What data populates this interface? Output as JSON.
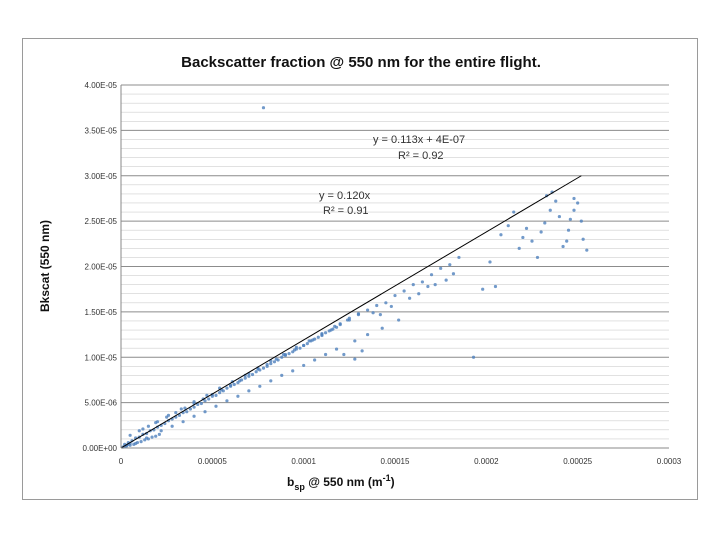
{
  "chart_data": {
    "type": "scatter",
    "title": "Backscatter fraction @ 550 nm for the entire flight.",
    "xlabel": {
      "prefix": "b",
      "sub": "sp",
      "middle": " @ 550 nm (m",
      "sup": "-1",
      "suffix": ")"
    },
    "ylabel": "Bkscat (550 nm)",
    "xlim": [
      0,
      0.0003
    ],
    "ylim": [
      0,
      4e-05
    ],
    "x_ticks": [
      0,
      5e-05,
      0.0001,
      0.00015,
      0.0002,
      0.00025,
      0.0003
    ],
    "x_tick_labels": [
      "0",
      "0.00005",
      "0.0001",
      "0.00015",
      "0.0002",
      "0.00025",
      "0.0003"
    ],
    "y_ticks": [
      0,
      5e-06,
      1e-05,
      1.5e-05,
      2e-05,
      2.5e-05,
      3e-05,
      3.5e-05,
      4e-05
    ],
    "y_tick_labels": [
      "0.00E+00",
      "5.00E-06",
      "1.00E-05",
      "1.50E-05",
      "2.00E-05",
      "2.50E-05",
      "3.00E-05",
      "3.50E-05",
      "4.00E-05"
    ],
    "grid": true,
    "legend": "none",
    "marker_color": "#4f81bd",
    "line_color": "#000000",
    "series": [
      {
        "points": [
          [
            2e-06,
            4e-07
          ],
          [
            4e-06,
            6e-07
          ],
          [
            6e-06,
            8e-07
          ],
          [
            8e-06,
            1.1e-06
          ],
          [
            1e-05,
            1.2e-06
          ],
          [
            1.2e-05,
            1.5e-06
          ],
          [
            1.4e-05,
            1.6e-06
          ],
          [
            1.6e-05,
            1.9e-06
          ],
          [
            1.8e-05,
            2e-06
          ],
          [
            2e-05,
            2.3e-06
          ],
          [
            2.2e-05,
            2.5e-06
          ],
          [
            2.4e-05,
            2.7e-06
          ],
          [
            2.6e-05,
            3e-06
          ],
          [
            2.8e-05,
            3.2e-06
          ],
          [
            3e-05,
            3.4e-06
          ],
          [
            3.2e-05,
            3.6e-06
          ],
          [
            3.4e-05,
            3.9e-06
          ],
          [
            3.6e-05,
            4e-06
          ],
          [
            3.8e-05,
            4.3e-06
          ],
          [
            4e-05,
            4.5e-06
          ],
          [
            4.2e-05,
            4.8e-06
          ],
          [
            4.4e-05,
            4.9e-06
          ],
          [
            4.6e-05,
            5.2e-06
          ],
          [
            4.8e-05,
            5.4e-06
          ],
          [
            5e-05,
            5.7e-06
          ],
          [
            5.2e-05,
            5.8e-06
          ],
          [
            5.4e-05,
            6.1e-06
          ],
          [
            5.6e-05,
            6.3e-06
          ],
          [
            5.8e-05,
            6.6e-06
          ],
          [
            6e-05,
            6.8e-06
          ],
          [
            6.2e-05,
            7e-06
          ],
          [
            6.4e-05,
            7.2e-06
          ],
          [
            6.6e-05,
            7.5e-06
          ],
          [
            6.8e-05,
            7.7e-06
          ],
          [
            7e-05,
            7.9e-06
          ],
          [
            7.2e-05,
            8.1e-06
          ],
          [
            7.4e-05,
            8.4e-06
          ],
          [
            7.6e-05,
            8.6e-06
          ],
          [
            7.8e-05,
            8.8e-06
          ],
          [
            8e-05,
            9e-06
          ],
          [
            8.2e-05,
            9.3e-06
          ],
          [
            8.4e-05,
            9.5e-06
          ],
          [
            8.6e-05,
            9.7e-06
          ],
          [
            8.8e-05,
            1e-05
          ],
          [
            9e-05,
            1.02e-05
          ],
          [
            9.2e-05,
            1.04e-05
          ],
          [
            9.4e-05,
            1.06e-05
          ],
          [
            9.6e-05,
            1.09e-05
          ],
          [
            9.8e-05,
            1.1e-05
          ],
          [
            0.0001,
            1.13e-05
          ],
          [
            0.000102,
            1.15e-05
          ],
          [
            0.000104,
            1.18e-05
          ],
          [
            0.000106,
            1.2e-05
          ],
          [
            0.000108,
            1.22e-05
          ],
          [
            0.00011,
            1.24e-05
          ],
          [
            0.000112,
            1.27e-05
          ],
          [
            0.000114,
            1.29e-05
          ],
          [
            0.000116,
            1.31e-05
          ],
          [
            0.000118,
            1.33e-05
          ],
          [
            0.00012,
            1.36e-05
          ],
          [
            0.000125,
            1.41e-05
          ],
          [
            0.00013,
            1.47e-05
          ],
          [
            0.000135,
            1.52e-05
          ],
          [
            1e-05,
            1.9e-06
          ],
          [
            1.5e-05,
            2.4e-06
          ],
          [
            2e-05,
            2.9e-06
          ],
          [
            2.5e-05,
            3.4e-06
          ],
          [
            3e-05,
            3.9e-06
          ],
          [
            3.5e-05,
            4.4e-06
          ],
          [
            4e-05,
            4.9e-06
          ],
          [
            4.5e-05,
            5.4e-06
          ],
          [
            5e-05,
            5.9e-06
          ],
          [
            5.5e-05,
            6.4e-06
          ],
          [
            6e-05,
            6.9e-06
          ],
          [
            6.5e-05,
            7.4e-06
          ],
          [
            7e-05,
            8.2e-06
          ],
          [
            7.5e-05,
            8.7e-06
          ],
          [
            8e-05,
            9.2e-06
          ],
          [
            8.5e-05,
            9.8e-06
          ],
          [
            9e-05,
            1.03e-05
          ],
          [
            9.5e-05,
            1.08e-05
          ],
          [
            0.0001,
            1.13e-05
          ],
          [
            0.000105,
            1.19e-05
          ],
          [
            0.00011,
            1.25e-05
          ],
          [
            0.000115,
            1.3e-05
          ],
          [
            0.00012,
            1.37e-05
          ],
          [
            0.000125,
            1.43e-05
          ],
          [
            0.00013,
            1.48e-05
          ],
          [
            8e-06,
            5e-07
          ],
          [
            1.4e-05,
            1.1e-06
          ],
          [
            2.2e-05,
            1.9e-06
          ],
          [
            2.8e-05,
            2.4e-06
          ],
          [
            3.4e-05,
            2.9e-06
          ],
          [
            4e-05,
            3.5e-06
          ],
          [
            4.6e-05,
            4e-06
          ],
          [
            5.2e-05,
            4.6e-06
          ],
          [
            5.8e-05,
            5.2e-06
          ],
          [
            6.4e-05,
            5.7e-06
          ],
          [
            7e-05,
            6.3e-06
          ],
          [
            7.6e-05,
            6.8e-06
          ],
          [
            8.2e-05,
            7.4e-06
          ],
          [
            8.8e-05,
            8e-06
          ],
          [
            9.4e-05,
            8.5e-06
          ],
          [
            0.0001,
            9.1e-06
          ],
          [
            0.000106,
            9.7e-06
          ],
          [
            0.000112,
            1.03e-05
          ],
          [
            0.000118,
            1.09e-05
          ],
          [
            5e-06,
            1.4e-06
          ],
          [
            1.2e-05,
            2.1e-06
          ],
          [
            1.9e-05,
            2.8e-06
          ],
          [
            2.6e-05,
            3.6e-06
          ],
          [
            3.3e-05,
            4.3e-06
          ],
          [
            4e-05,
            5.1e-06
          ],
          [
            4.7e-05,
            5.8e-06
          ],
          [
            5.4e-05,
            6.6e-06
          ],
          [
            6.1e-05,
            7.3e-06
          ],
          [
            6.8e-05,
            8e-06
          ],
          [
            7.5e-05,
            8.8e-06
          ],
          [
            8.2e-05,
            9.6e-06
          ],
          [
            8.9e-05,
            1.03e-05
          ],
          [
            9.6e-05,
            1.11e-05
          ],
          [
            0.000103,
            1.18e-05
          ],
          [
            0.00011,
            1.26e-05
          ],
          [
            0.000117,
            1.34e-05
          ],
          [
            0.000124,
            1.41e-05
          ],
          [
            3e-06,
            2e-07
          ],
          [
            5e-06,
            3e-07
          ],
          [
            7e-06,
            4e-07
          ],
          [
            9e-06,
            6e-07
          ],
          [
            1.1e-05,
            7e-07
          ],
          [
            1.3e-05,
            9e-07
          ],
          [
            1.5e-05,
            1e-06
          ],
          [
            1.7e-05,
            1.2e-06
          ],
          [
            1.9e-05,
            1.3e-06
          ],
          [
            2.1e-05,
            1.5e-06
          ],
          [
            1e-06,
            1e-07
          ],
          [
            2e-06,
            2e-07
          ],
          [
            3e-06,
            3e-07
          ],
          [
            4e-06,
            4e-07
          ],
          [
            5e-06,
            5e-07
          ],
          [
            0.00014,
            1.57e-05
          ],
          [
            0.000145,
            1.6e-05
          ],
          [
            0.00015,
            1.68e-05
          ],
          [
            0.000155,
            1.73e-05
          ],
          [
            0.00016,
            1.8e-05
          ],
          [
            0.000165,
            1.83e-05
          ],
          [
            0.00017,
            1.91e-05
          ],
          [
            0.000175,
            1.98e-05
          ],
          [
            0.00018,
            2.02e-05
          ],
          [
            0.000185,
            2.1e-05
          ],
          [
            0.000138,
            1.49e-05
          ],
          [
            0.000142,
            1.47e-05
          ],
          [
            0.000148,
            1.56e-05
          ],
          [
            0.000158,
            1.65e-05
          ],
          [
            0.000163,
            1.7e-05
          ],
          [
            0.000168,
            1.78e-05
          ],
          [
            0.000172,
            1.8e-05
          ],
          [
            0.000178,
            1.85e-05
          ],
          [
            0.000182,
            1.92e-05
          ],
          [
            0.000122,
            1.03e-05
          ],
          [
            0.000128,
            9.8e-06
          ],
          [
            0.000132,
            1.07e-05
          ],
          [
            0.000128,
            1.18e-05
          ],
          [
            0.000135,
            1.25e-05
          ],
          [
            0.000143,
            1.32e-05
          ],
          [
            0.000152,
            1.41e-05
          ],
          [
            7.8e-05,
            3.75e-05
          ],
          [
            0.000193,
            1e-05
          ],
          [
            0.000198,
            1.75e-05
          ],
          [
            0.000202,
            2.05e-05
          ],
          [
            0.000205,
            1.78e-05
          ],
          [
            0.000208,
            2.35e-05
          ],
          [
            0.000212,
            2.45e-05
          ],
          [
            0.000215,
            2.6e-05
          ],
          [
            0.000218,
            2.2e-05
          ],
          [
            0.00022,
            2.32e-05
          ],
          [
            0.000222,
            2.42e-05
          ],
          [
            0.000225,
            2.28e-05
          ],
          [
            0.000228,
            2.1e-05
          ],
          [
            0.00023,
            2.38e-05
          ],
          [
            0.000232,
            2.48e-05
          ],
          [
            0.000235,
            2.62e-05
          ],
          [
            0.000238,
            2.72e-05
          ],
          [
            0.00024,
            2.55e-05
          ],
          [
            0.000242,
            2.22e-05
          ],
          [
            0.000244,
            2.28e-05
          ],
          [
            0.000245,
            2.4e-05
          ],
          [
            0.000246,
            2.52e-05
          ],
          [
            0.000248,
            2.62e-05
          ],
          [
            0.00025,
            2.7e-05
          ],
          [
            0.000252,
            2.5e-05
          ],
          [
            0.000253,
            2.3e-05
          ],
          [
            0.000255,
            2.18e-05
          ],
          [
            0.000236,
            2.82e-05
          ],
          [
            0.000233,
            2.78e-05
          ],
          [
            0.000248,
            2.75e-05
          ]
        ]
      }
    ],
    "fit_line": {
      "x": [
        0,
        0.000252
      ],
      "y": [
        0,
        3e-05
      ]
    },
    "annotations": [
      {
        "line1": "y = 0.113x + 4E-07",
        "line2": "R² = 0.92"
      },
      {
        "line1": "y = 0.120x",
        "line2": "R² = 0.91"
      }
    ]
  }
}
